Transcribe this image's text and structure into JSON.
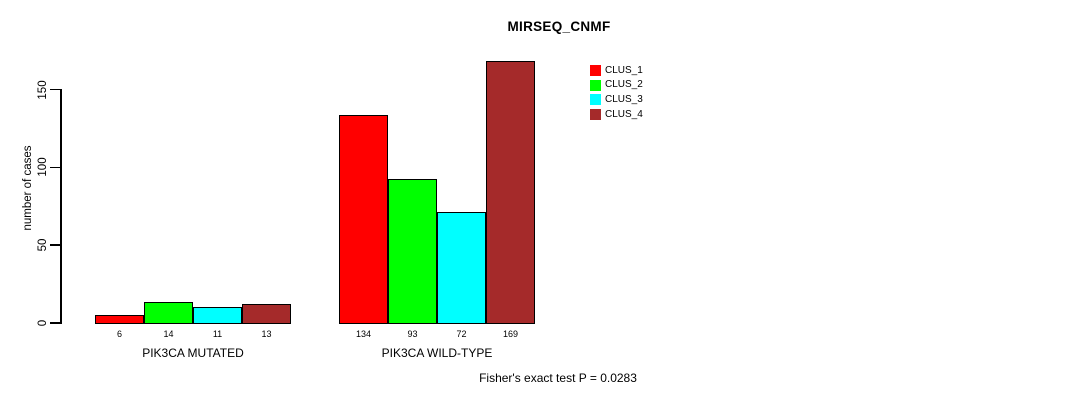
{
  "chart_data": {
    "type": "bar",
    "title": "MIRSEQ_CNMF",
    "ylabel": "number of cases",
    "xlabel": "",
    "categories": [
      "PIK3CA MUTATED",
      "PIK3CA WILD-TYPE"
    ],
    "series": [
      {
        "name": "CLUS_1",
        "color": "#ff0000",
        "values": [
          6,
          134
        ]
      },
      {
        "name": "CLUS_2",
        "color": "#00ff00",
        "values": [
          14,
          93
        ]
      },
      {
        "name": "CLUS_3",
        "color": "#00ffff",
        "values": [
          11,
          72
        ]
      },
      {
        "name": "CLUS_4",
        "color": "#a52a2a",
        "values": [
          13,
          169
        ]
      }
    ],
    "yticks": [
      0,
      50,
      100,
      150
    ],
    "ylim": [
      0,
      175
    ],
    "grid": false,
    "legend_position": "right-of-plot-top",
    "bar_value_labels": true,
    "annotation": "Fisher's exact test P = 0.0283"
  }
}
